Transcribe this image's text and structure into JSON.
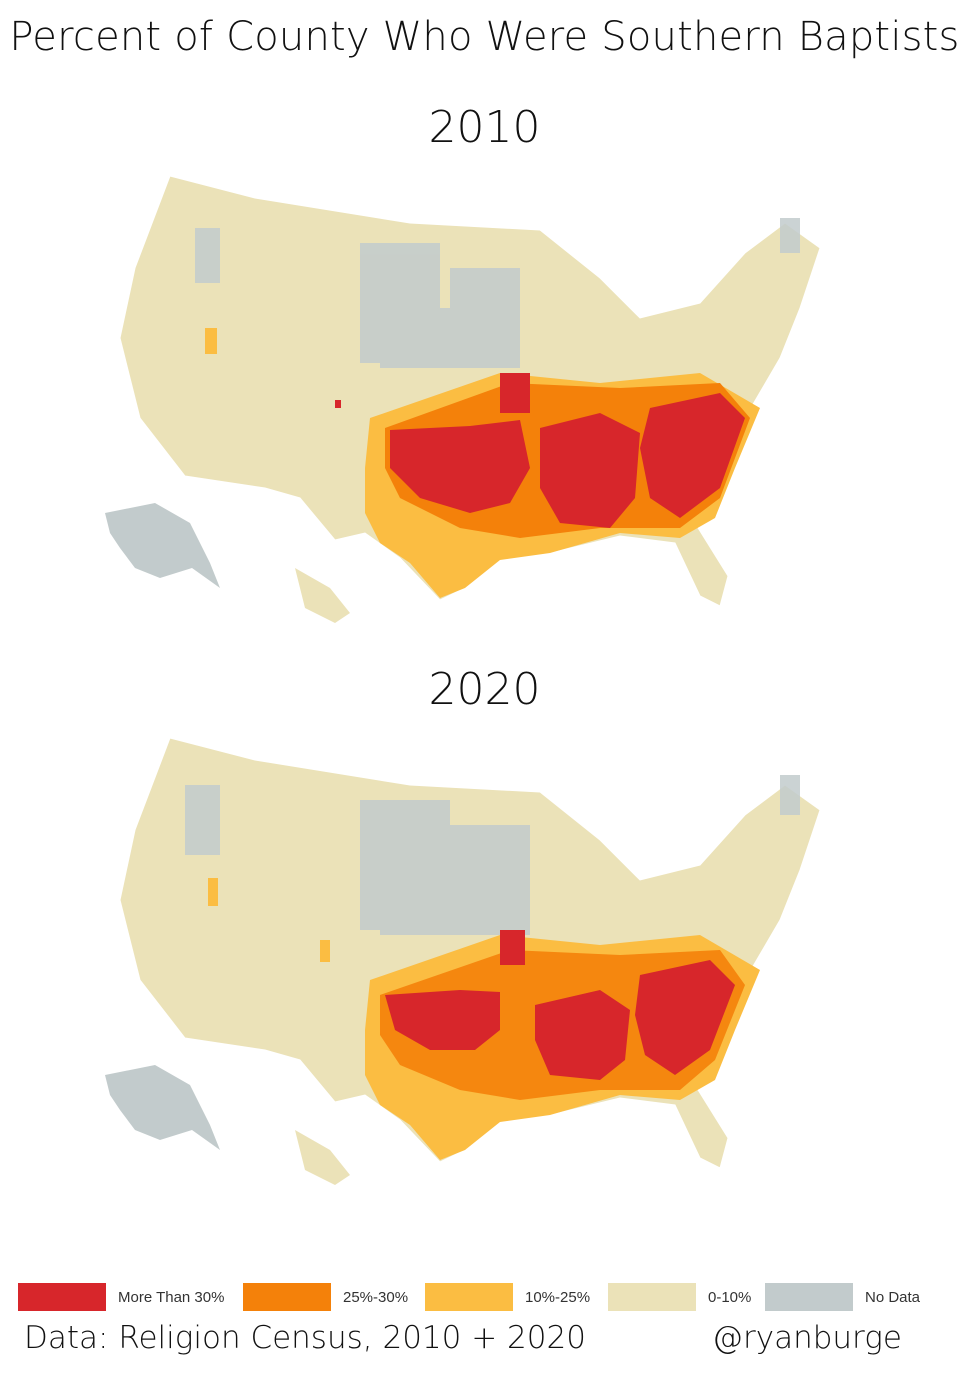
{
  "title": "Percent of County Who Were Southern Baptists",
  "maps": [
    {
      "year": "2010"
    },
    {
      "year": "2020"
    }
  ],
  "legend": [
    {
      "label": "More Than 30%",
      "color": "#d7262b"
    },
    {
      "label": "25%-30%",
      "color": "#f4810a"
    },
    {
      "label": "10%-25%",
      "color": "#fbbd42"
    },
    {
      "label": "0-10%",
      "color": "#ebe2b8"
    },
    {
      "label": "No Data",
      "color": "#c2cbcc"
    }
  ],
  "footer": {
    "source": "Data: Religion Census, 2010 + 2020",
    "handle": "@ryanburge"
  }
}
